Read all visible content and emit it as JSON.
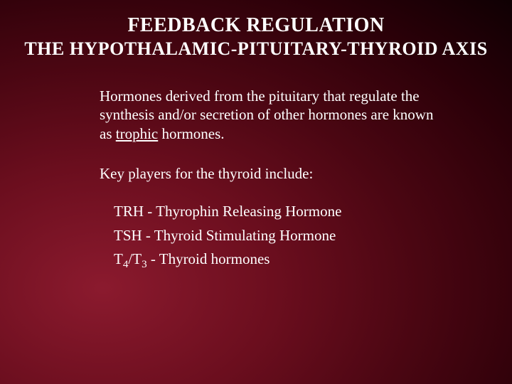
{
  "title_main": "FEEDBACK REGULATION",
  "title_sub": "THE HYPOTHALAMIC-PITUITARY-THYROID AXIS",
  "para1_pre": "Hormones derived from the pituitary that regulate the synthesis and/or secretion of other hormones are known as ",
  "para1_underline": "trophic",
  "para1_post": " hormones.",
  "para2": "Key players for the thyroid include:",
  "item1": "TRH  - Thyrophin Releasing Hormone",
  "item2": "TSH   - Thyroid Stimulating Hormone",
  "item3_pre": " T",
  "item3_s1": "4",
  "item3_mid": "/T",
  "item3_s2": "3",
  "item3_post": " - Thyroid hormones",
  "colors": {
    "text": "#ffffff",
    "bg_center": "#8b1a2e",
    "bg_edge": "#0f0003"
  },
  "fonts": {
    "title_size_pt": 28,
    "sub_size_pt": 26,
    "body_size_pt": 21,
    "family": "Georgia / Times New Roman serif"
  }
}
